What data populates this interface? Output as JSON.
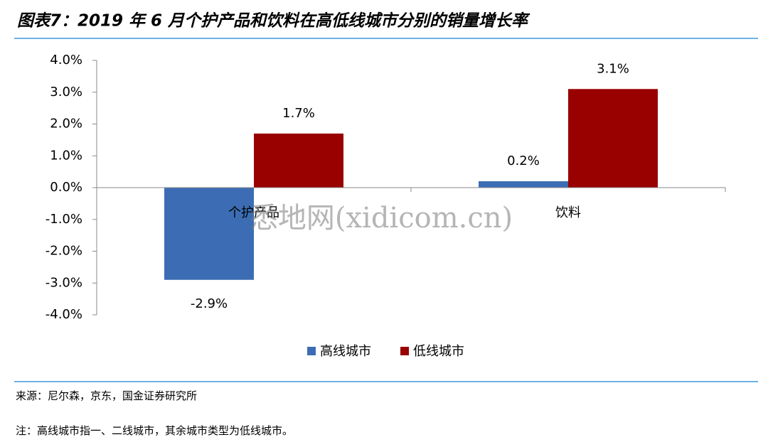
{
  "chart_data": {
    "type": "bar",
    "title": "图表7：2019 年 6 月个护产品和饮料在高低线城市分别的销量增长率",
    "categories": [
      "个护产品",
      "饮料"
    ],
    "series": [
      {
        "name": "高线城市",
        "color": "#3c6db4",
        "values": [
          -2.9,
          0.2
        ],
        "value_labels": [
          "-2.9%",
          "0.2%"
        ]
      },
      {
        "name": "低线城市",
        "color": "#990000",
        "values": [
          1.7,
          3.1
        ],
        "value_labels": [
          "1.7%",
          "3.1%"
        ]
      }
    ],
    "ylim": [
      -4,
      4
    ],
    "yticks": [
      {
        "value": -4,
        "label": "-4.0%"
      },
      {
        "value": -3,
        "label": "-3.0%"
      },
      {
        "value": -2,
        "label": "-2.0%"
      },
      {
        "value": -1,
        "label": "-1.0%"
      },
      {
        "value": 0,
        "label": "0.0%"
      },
      {
        "value": 1,
        "label": "1.0%"
      },
      {
        "value": 2,
        "label": "2.0%"
      },
      {
        "value": 3,
        "label": "3.0%"
      },
      {
        "value": 4,
        "label": "4.0%"
      }
    ],
    "legend": "bottom",
    "source": "来源：尼尔森，京东，国金证券研究所",
    "note": "注：高线城市指一、二线城市，其余城市类型为低线城市。",
    "watermark": "悉地网(xidicom.cn)"
  }
}
